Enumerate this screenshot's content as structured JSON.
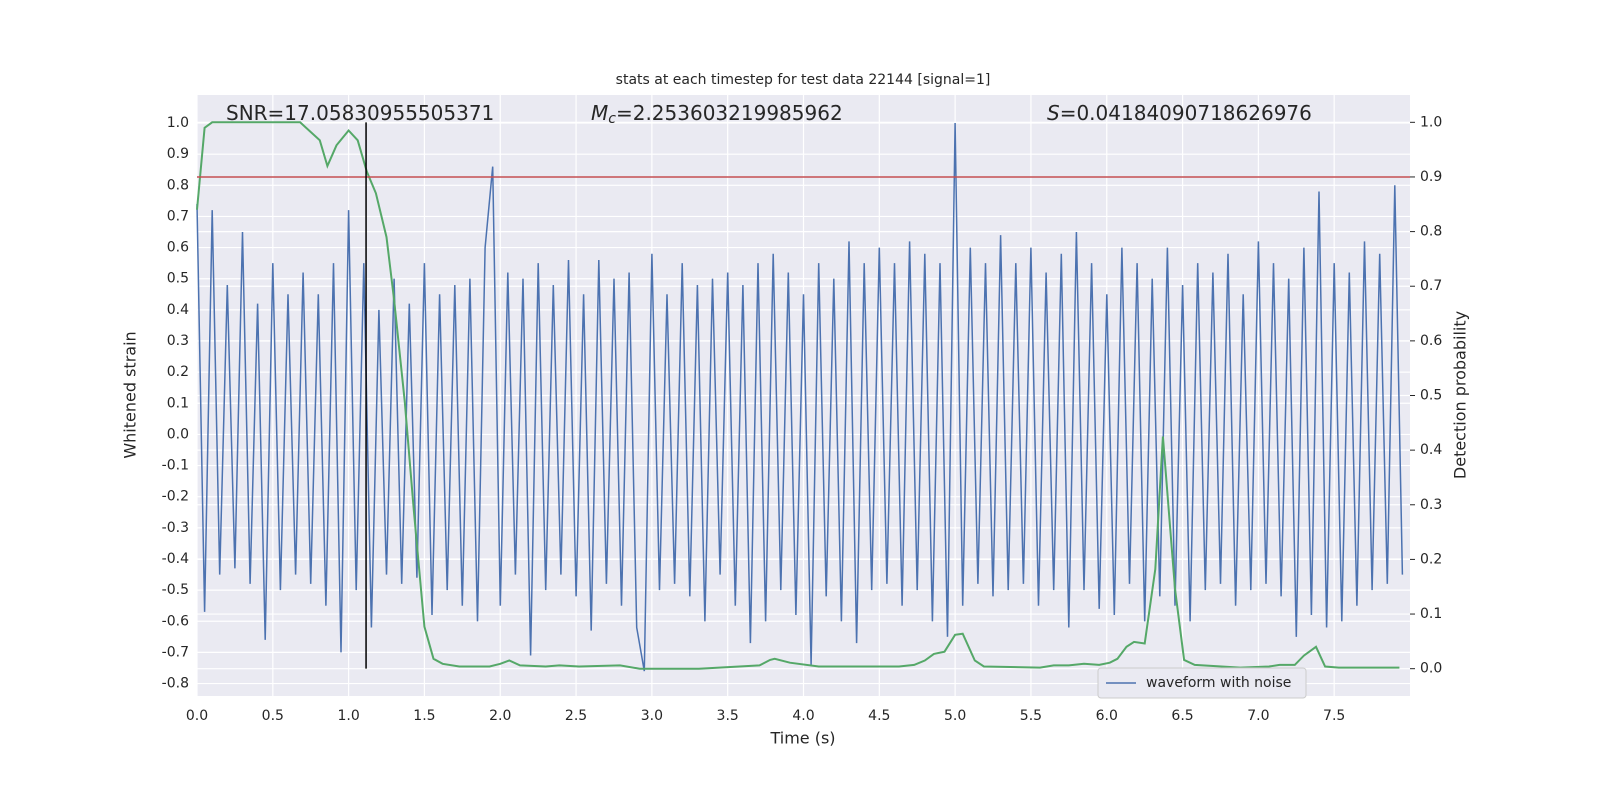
{
  "chart_data": {
    "type": "line",
    "title": "stats at each timestep for test data 22144 [signal=1]",
    "xlabel": "Time (s)",
    "ylabel": "Whitened strain",
    "y2label": "Detection probability",
    "annotations": [
      {
        "text": "SNR=17.05830955505371"
      },
      {
        "symbol": "M",
        "subscript": "c",
        "text": "=2.253603219985962"
      },
      {
        "symbol": "S",
        "text": "=0.04184090718626976"
      }
    ],
    "xlim": [
      0,
      8
    ],
    "ylim": [
      -0.84,
      1.09
    ],
    "y2lim": [
      -0.05,
      1.05
    ],
    "xticks": [
      {
        "value": 0,
        "label": "0.0"
      },
      0.5,
      {
        "value": 1,
        "label": "1.0"
      },
      1.5,
      {
        "value": 2,
        "label": "2.0"
      },
      2.5,
      {
        "value": 3,
        "label": "3.0"
      },
      3.5,
      {
        "value": 4,
        "label": "4.0"
      },
      4.5,
      {
        "value": 5,
        "label": "5.0"
      },
      5.5,
      {
        "value": 6,
        "label": "6.0"
      },
      6.5,
      {
        "value": 7,
        "label": "7.0"
      },
      7.5
    ],
    "yticks": [
      {
        "value": -0.8,
        "label": "-0.8"
      },
      {
        "value": -0.7,
        "label": "-0.7"
      },
      {
        "value": -0.6,
        "label": "-0.6"
      },
      {
        "value": -0.5,
        "label": "-0.5"
      },
      {
        "value": -0.4,
        "label": "-0.4"
      },
      {
        "value": -0.3,
        "label": "-0.3"
      },
      {
        "value": -0.2,
        "label": "-0.2"
      },
      {
        "value": -0.1,
        "label": "-0.1"
      },
      {
        "value": 0,
        "label": "0.0"
      },
      0.1,
      0.2,
      0.3,
      0.4,
      0.5,
      0.6,
      0.7,
      0.8,
      0.9,
      {
        "value": 1,
        "label": "1.0"
      }
    ],
    "y2ticks": [
      {
        "value": 0,
        "label": "0.0"
      },
      0.1,
      0.2,
      0.3,
      0.4,
      0.5,
      0.6,
      0.7,
      0.8,
      0.9,
      {
        "value": 1,
        "label": "1.0"
      }
    ],
    "grid": true,
    "legend": "lower right",
    "hline": {
      "value": 0.9,
      "axis": "y2",
      "color": "#c44e52"
    },
    "vline": {
      "value": 1.115,
      "color": "#000000"
    },
    "series": [
      {
        "name": "waveform with noise",
        "color": "#4c72b0",
        "x": [
          0,
          0.05,
          0.1,
          0.15,
          0.2,
          0.25,
          0.3,
          0.35,
          0.4,
          0.45,
          0.5,
          0.55,
          0.6,
          0.65,
          0.7,
          0.75,
          0.8,
          0.85,
          0.9,
          0.95,
          1,
          1.05,
          1.1,
          1.15,
          1.2,
          1.25,
          1.3,
          1.35,
          1.4,
          1.45,
          1.5,
          1.55,
          1.6,
          1.65,
          1.7,
          1.75,
          1.8,
          1.85,
          1.9,
          1.95,
          2,
          2.05,
          2.1,
          2.15,
          2.2,
          2.25,
          2.3,
          2.35,
          2.4,
          2.45,
          2.5,
          2.55,
          2.6,
          2.65,
          2.7,
          2.75,
          2.8,
          2.85,
          2.9,
          2.95,
          3,
          3.05,
          3.1,
          3.15,
          3.2,
          3.25,
          3.3,
          3.35,
          3.4,
          3.45,
          3.5,
          3.55,
          3.6,
          3.65,
          3.7,
          3.75,
          3.8,
          3.85,
          3.9,
          3.95,
          4,
          4.05,
          4.1,
          4.15,
          4.2,
          4.25,
          4.3,
          4.35,
          4.4,
          4.45,
          4.5,
          4.55,
          4.6,
          4.65,
          4.7,
          4.75,
          4.8,
          4.85,
          4.9,
          4.95,
          5,
          5.05,
          5.1,
          5.15,
          5.2,
          5.25,
          5.3,
          5.35,
          5.4,
          5.45,
          5.5,
          5.55,
          5.6,
          5.65,
          5.7,
          5.75,
          5.8,
          5.85,
          5.9,
          5.95,
          6,
          6.05,
          6.1,
          6.15,
          6.2,
          6.25,
          6.3,
          6.35,
          6.4,
          6.45,
          6.5,
          6.55,
          6.6,
          6.65,
          6.7,
          6.75,
          6.8,
          6.85,
          6.9,
          6.95,
          7,
          7.05,
          7.1,
          7.15,
          7.2,
          7.25,
          7.3,
          7.35,
          7.4,
          7.45,
          7.5,
          7.55,
          7.6,
          7.65,
          7.7,
          7.75,
          7.8,
          7.85,
          7.9,
          7.95
        ],
        "values": [
          0.74,
          -0.57,
          0.72,
          -0.45,
          0.48,
          -0.43,
          0.65,
          -0.48,
          0.42,
          -0.66,
          0.55,
          -0.5,
          0.45,
          -0.45,
          0.52,
          -0.48,
          0.45,
          -0.55,
          0.55,
          -0.7,
          0.72,
          -0.5,
          0.55,
          -0.62,
          0.4,
          -0.45,
          0.5,
          -0.48,
          0.42,
          -0.46,
          0.55,
          -0.58,
          0.45,
          -0.5,
          0.48,
          -0.55,
          0.5,
          -0.6,
          0.6,
          0.86,
          -0.55,
          0.52,
          -0.45,
          0.5,
          -0.71,
          0.55,
          -0.5,
          0.48,
          -0.45,
          0.56,
          -0.52,
          0.45,
          -0.63,
          0.56,
          -0.48,
          0.5,
          -0.55,
          0.52,
          -0.62,
          -0.76,
          0.58,
          -0.5,
          0.45,
          -0.48,
          0.55,
          -0.52,
          0.48,
          -0.6,
          0.5,
          -0.45,
          0.52,
          -0.55,
          0.48,
          -0.67,
          0.55,
          -0.6,
          0.58,
          -0.5,
          0.52,
          -0.58,
          0.45,
          -0.74,
          0.55,
          -0.52,
          0.5,
          -0.6,
          0.62,
          -0.67,
          0.55,
          -0.5,
          0.6,
          -0.48,
          0.55,
          -0.55,
          0.62,
          -0.5,
          0.58,
          -0.6,
          0.55,
          -0.65,
          1.0,
          -0.55,
          0.6,
          -0.48,
          0.55,
          -0.52,
          0.64,
          -0.5,
          0.55,
          -0.48,
          0.6,
          -0.55,
          0.52,
          -0.5,
          0.58,
          -0.62,
          0.65,
          -0.5,
          0.55,
          -0.56,
          0.45,
          -0.58,
          0.6,
          -0.48,
          0.55,
          -0.6,
          0.5,
          -0.52,
          0.6,
          -0.55,
          0.48,
          -0.6,
          0.55,
          -0.5,
          0.52,
          -0.48,
          0.58,
          -0.55,
          0.45,
          -0.5,
          0.62,
          -0.48,
          0.55,
          -0.52,
          0.5,
          -0.65,
          0.6,
          -0.58,
          0.78,
          -0.62,
          0.55,
          -0.6,
          0.52,
          -0.55,
          0.62,
          -0.5,
          0.58,
          -0.48,
          0.8,
          -0.45
        ]
      },
      {
        "color": "#55a868",
        "axis": "y2",
        "x": [
          0,
          0.05,
          0.1,
          0.2,
          0.4,
          0.6,
          0.68,
          0.81,
          0.86,
          0.92,
          1.0,
          1.06,
          1.12,
          1.18,
          1.25,
          1.3,
          1.37,
          1.43,
          1.5,
          1.56,
          1.62,
          1.73,
          1.93,
          2.0,
          2.06,
          2.13,
          2.3,
          2.39,
          2.52,
          2.79,
          2.92,
          3.31,
          3.71,
          3.78,
          3.81,
          3.91,
          4.1,
          4.63,
          4.73,
          4.8,
          4.86,
          4.93,
          5.0,
          5.05,
          5.13,
          5.19,
          5.56,
          5.65,
          5.75,
          5.85,
          5.95,
          6.02,
          6.07,
          6.13,
          6.18,
          6.25,
          6.32,
          6.37,
          6.45,
          6.51,
          6.58,
          6.88,
          7.07,
          7.14,
          7.24,
          7.3,
          7.38,
          7.44,
          7.53,
          7.93
        ],
        "values": [
          0.84,
          0.99,
          1.0,
          1.0,
          1.0,
          1.0,
          1.0,
          0.967,
          0.92,
          0.958,
          0.985,
          0.967,
          0.91,
          0.87,
          0.79,
          0.675,
          0.49,
          0.29,
          0.077,
          0.018,
          0.009,
          0.004,
          0.004,
          0.009,
          0.015,
          0.006,
          0.004,
          0.006,
          0.004,
          0.006,
          0.0,
          0.0,
          0.006,
          0.016,
          0.018,
          0.011,
          0.004,
          0.004,
          0.007,
          0.015,
          0.027,
          0.031,
          0.062,
          0.064,
          0.015,
          0.004,
          0.002,
          0.006,
          0.006,
          0.009,
          0.007,
          0.011,
          0.018,
          0.04,
          0.049,
          0.046,
          0.182,
          0.425,
          0.146,
          0.016,
          0.007,
          0.002,
          0.004,
          0.007,
          0.007,
          0.024,
          0.04,
          0.004,
          0.002,
          0.002
        ]
      }
    ]
  }
}
